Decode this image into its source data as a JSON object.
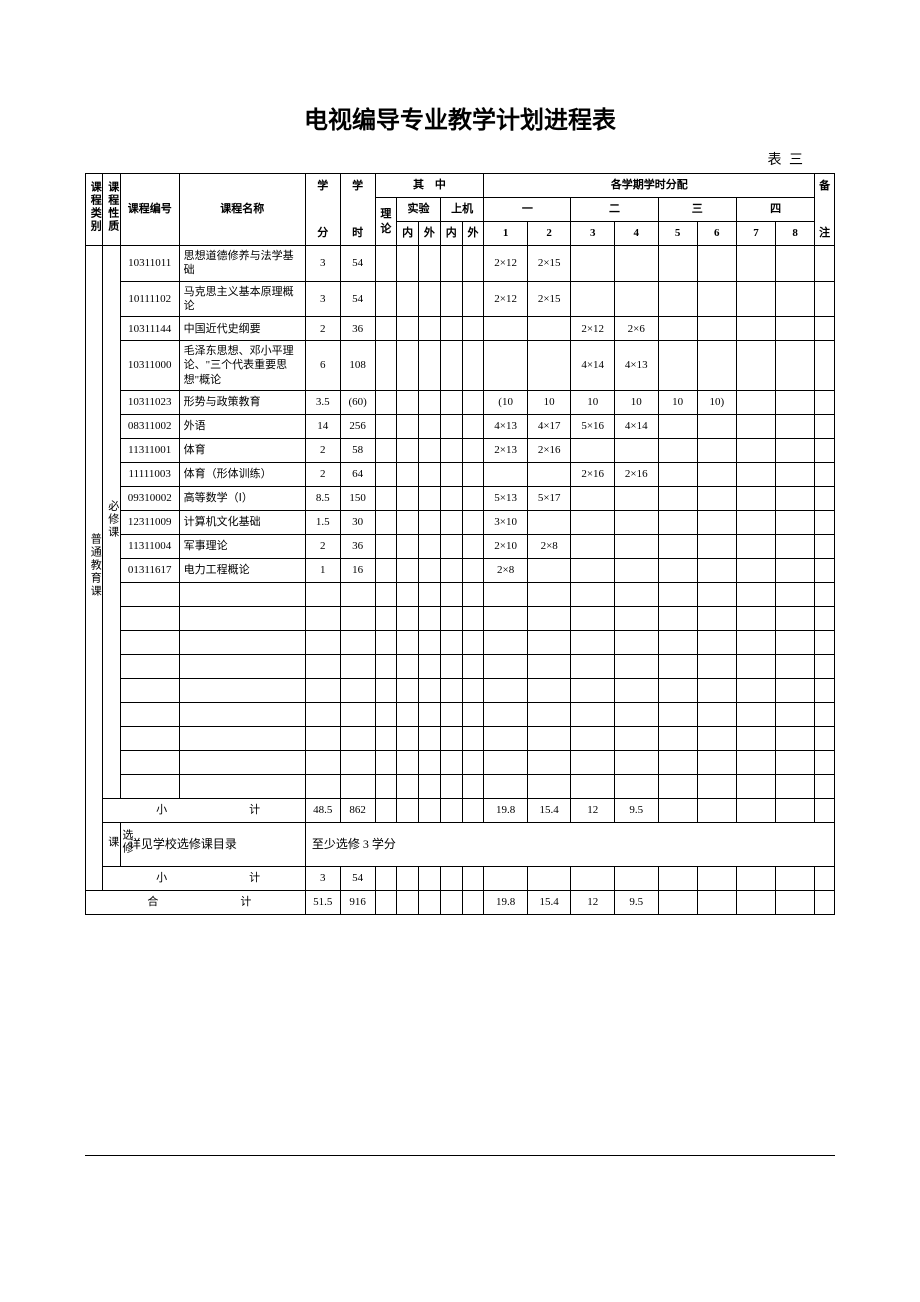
{
  "title": "电视编导专业教学计划进程表",
  "table_label": "表 三",
  "header": {
    "category": "课程类别",
    "nature": "课程性质",
    "code": "课程编号",
    "name": "课程名称",
    "credit": "学",
    "credit2": "分",
    "hours": "学",
    "hours2": "时",
    "within_label": "其　中",
    "theory": "理论",
    "lab": "实验",
    "machine": "上机",
    "inside": "内",
    "outside": "外",
    "sem_dist": "各学期学时分配",
    "sem_one": "一",
    "sem_two": "二",
    "sem_three": "三",
    "sem_four": "四",
    "n1": "1",
    "n2": "2",
    "n3": "3",
    "n4": "4",
    "n5": "5",
    "n6": "6",
    "n7": "7",
    "n8": "8",
    "remark": "备",
    "remark2": "注"
  },
  "category_general": "普通教育课",
  "nature_required": "必修课",
  "nature_elective": "选修课",
  "courses": [
    {
      "code": "10311011",
      "name": "思想道德修养与法学基础",
      "credit": "3",
      "hours": "54",
      "s1": "2×12",
      "s2": "2×15"
    },
    {
      "code": "10111102",
      "name": "马克思主义基本原理概论",
      "credit": "3",
      "hours": "54",
      "s1": "2×12",
      "s2": "2×15"
    },
    {
      "code": "10311144",
      "name": "中国近代史纲要",
      "credit": "2",
      "hours": "36",
      "s3": "2×12",
      "s4": "2×6"
    },
    {
      "code": "10311000",
      "name": "毛泽东思想、邓小平理论、\"三个代表重要思想\"概论",
      "credit": "6",
      "hours": "108",
      "s3": "4×14",
      "s4": "4×13"
    },
    {
      "code": "10311023",
      "name": "形势与政策教育",
      "credit": "3.5",
      "hours": "(60)",
      "s1": "(10",
      "s2": "10",
      "s3": "10",
      "s4": "10",
      "s5": "10",
      "s6": "10)"
    },
    {
      "code": "08311002",
      "name": "外语",
      "credit": "14",
      "hours": "256",
      "s1": "4×13",
      "s2": "4×17",
      "s3": "5×16",
      "s4": "4×14"
    },
    {
      "code": "11311001",
      "name": "体育",
      "credit": "2",
      "hours": "58",
      "s1": "2×13",
      "s2": "2×16"
    },
    {
      "code": "11111003",
      "name": "体育（形体训练）",
      "credit": "2",
      "hours": "64",
      "s3": "2×16",
      "s4": "2×16"
    },
    {
      "code": "09310002",
      "name": "高等数学（Ⅰ）",
      "credit": "8.5",
      "hours": "150",
      "s1": "5×13",
      "s2": "5×17"
    },
    {
      "code": "12311009",
      "name": "计算机文化基础",
      "credit": "1.5",
      "hours": "30",
      "s1": "3×10"
    },
    {
      "code": "11311004",
      "name": "军事理论",
      "credit": "2",
      "hours": "36",
      "s1": "2×10",
      "s2": "2×8"
    },
    {
      "code": "01311617",
      "name": "电力工程概论",
      "credit": "1",
      "hours": "16",
      "s1": "2×8"
    }
  ],
  "empty_rows": 9,
  "subtotal": {
    "label": "小　　计",
    "credit": "48.5",
    "hours": "862",
    "s1": "19.8",
    "s2": "15.4",
    "s3": "12",
    "s4": "9.5"
  },
  "elective_note": "详见学校选修课目录",
  "elective_req": "至少选修 3 学分",
  "subtotal2": {
    "label": "小　　计",
    "credit": "3",
    "hours": "54"
  },
  "total": {
    "label": "合　　计",
    "credit": "51.5",
    "hours": "916",
    "s1": "19.8",
    "s2": "15.4",
    "s3": "12",
    "s4": "9.5"
  },
  "style": {
    "border_color": "#000000",
    "background": "#ffffff",
    "title_fontsize": 24,
    "cell_fontsize": 11
  }
}
